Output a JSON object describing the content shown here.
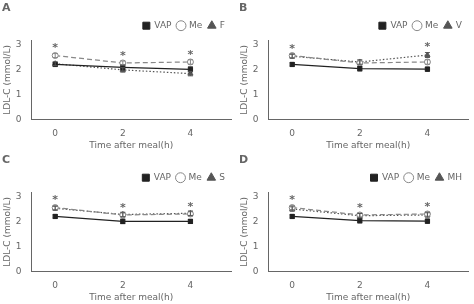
{
  "chart_data": [
    {
      "type": "line",
      "title": "A",
      "xlabel": "Time after meal(h)",
      "ylabel": "LDL-C (mmol/L)",
      "x": [
        0,
        2,
        4
      ],
      "xlim": [
        -0.7,
        5.2
      ],
      "xticks": [
        0,
        2,
        4
      ],
      "ylim": [
        0,
        3.2
      ],
      "yticks": [
        0,
        1,
        2,
        3
      ],
      "grid": false,
      "legend": "upper right",
      "series": [
        {
          "name": "VAP",
          "color": "#222222",
          "marker": "square",
          "line_style": "solid",
          "values": [
            2.22,
            2.1,
            2.02
          ],
          "errors": [
            0.07,
            0.1,
            0.1
          ]
        },
        {
          "name": "Me",
          "color": "#888888",
          "marker": "circle_open",
          "line_style": "dashed",
          "values": [
            2.58,
            2.28,
            2.32
          ],
          "errors": [
            0.08,
            0.08,
            0.09
          ]
        },
        {
          "name": "F",
          "color": "#555555",
          "marker": "triangle",
          "line_style": "dotted",
          "values": [
            2.25,
            2.0,
            1.85
          ],
          "errors": [
            0.08,
            0.09,
            0.09
          ]
        }
      ],
      "annotations": [
        {
          "text": "*",
          "x": 0,
          "y": 2.76,
          "color": "#666666"
        },
        {
          "text": "*",
          "x": 2,
          "y": 2.46,
          "color": "#666666"
        },
        {
          "text": "*",
          "x": 4,
          "y": 2.51,
          "color": "#666666"
        }
      ]
    },
    {
      "type": "line",
      "title": "B",
      "xlabel": "Time after meal(h)",
      "ylabel": "LDL-C (mmol/L)",
      "x": [
        0,
        2,
        4
      ],
      "xlim": [
        -0.7,
        5.2
      ],
      "xticks": [
        0,
        2,
        4
      ],
      "ylim": [
        0,
        3.2
      ],
      "yticks": [
        0,
        1,
        2,
        3
      ],
      "grid": false,
      "legend": "upper right",
      "series": [
        {
          "name": "VAP",
          "color": "#222222",
          "marker": "square",
          "line_style": "solid",
          "values": [
            2.22,
            2.05,
            2.03
          ],
          "errors": [
            0.07,
            0.09,
            0.08
          ]
        },
        {
          "name": "Me",
          "color": "#888888",
          "marker": "circle_open",
          "line_style": "dashed",
          "values": [
            2.58,
            2.28,
            2.32
          ],
          "errors": [
            0.08,
            0.08,
            0.09
          ]
        },
        {
          "name": "V",
          "color": "#555555",
          "marker": "triangle",
          "line_style": "dotted",
          "values": [
            2.55,
            2.32,
            2.6
          ],
          "errors": [
            0.08,
            0.09,
            0.1
          ]
        }
      ],
      "annotations": [
        {
          "text": "*",
          "x": 0,
          "y": 2.73,
          "color": "#666666"
        },
        {
          "text": "*",
          "x": 4,
          "y": 2.8,
          "color": "#666666"
        }
      ]
    },
    {
      "type": "line",
      "title": "C",
      "xlabel": "Time after meal(h)",
      "ylabel": "LDL-C (mmol/L)",
      "x": [
        0,
        2,
        4
      ],
      "xlim": [
        -0.7,
        5.2
      ],
      "xticks": [
        0,
        2,
        4
      ],
      "ylim": [
        0,
        3.2
      ],
      "yticks": [
        0,
        1,
        2,
        3
      ],
      "grid": false,
      "legend": "upper right",
      "series": [
        {
          "name": "VAP",
          "color": "#222222",
          "marker": "square",
          "line_style": "solid",
          "values": [
            2.22,
            2.02,
            2.02
          ],
          "errors": [
            0.07,
            0.09,
            0.08
          ]
        },
        {
          "name": "Me",
          "color": "#888888",
          "marker": "circle_open",
          "line_style": "dashed",
          "values": [
            2.58,
            2.28,
            2.32
          ],
          "errors": [
            0.08,
            0.08,
            0.09
          ]
        },
        {
          "name": "S",
          "color": "#555555",
          "marker": "triangle",
          "line_style": "dotted",
          "values": [
            2.55,
            2.3,
            2.35
          ],
          "errors": [
            0.08,
            0.09,
            0.09
          ]
        }
      ],
      "annotations": [
        {
          "text": "*",
          "x": 0,
          "y": 2.76,
          "color": "#666666"
        },
        {
          "text": "*",
          "x": 2,
          "y": 2.46,
          "color": "#666666"
        },
        {
          "text": "*",
          "x": 4,
          "y": 2.51,
          "color": "#666666"
        }
      ]
    },
    {
      "type": "line",
      "title": "D",
      "xlabel": "Time after meal(h)",
      "ylabel": "LDL-C (mmol/L)",
      "x": [
        0,
        2,
        4
      ],
      "xlim": [
        -0.7,
        5.2
      ],
      "xticks": [
        0,
        2,
        4
      ],
      "ylim": [
        0,
        3.2
      ],
      "yticks": [
        0,
        1,
        2,
        3
      ],
      "grid": false,
      "legend": "upper right",
      "series": [
        {
          "name": "VAP",
          "color": "#222222",
          "marker": "square",
          "line_style": "solid",
          "values": [
            2.22,
            2.05,
            2.03
          ],
          "errors": [
            0.07,
            0.09,
            0.08
          ]
        },
        {
          "name": "Me",
          "color": "#888888",
          "marker": "circle_open",
          "line_style": "dashed",
          "values": [
            2.58,
            2.28,
            2.32
          ],
          "errors": [
            0.08,
            0.08,
            0.09
          ]
        },
        {
          "name": "MH",
          "color": "#555555",
          "marker": "triangle",
          "line_style": "dotted",
          "values": [
            2.52,
            2.25,
            2.28
          ],
          "errors": [
            0.09,
            0.09,
            0.09
          ]
        }
      ],
      "annotations": [
        {
          "text": "*",
          "x": 0,
          "y": 2.76,
          "color": "#666666"
        },
        {
          "text": "*",
          "x": 2,
          "y": 2.46,
          "color": "#666666"
        },
        {
          "text": "*",
          "x": 4,
          "y": 2.51,
          "color": "#666666"
        }
      ]
    }
  ]
}
